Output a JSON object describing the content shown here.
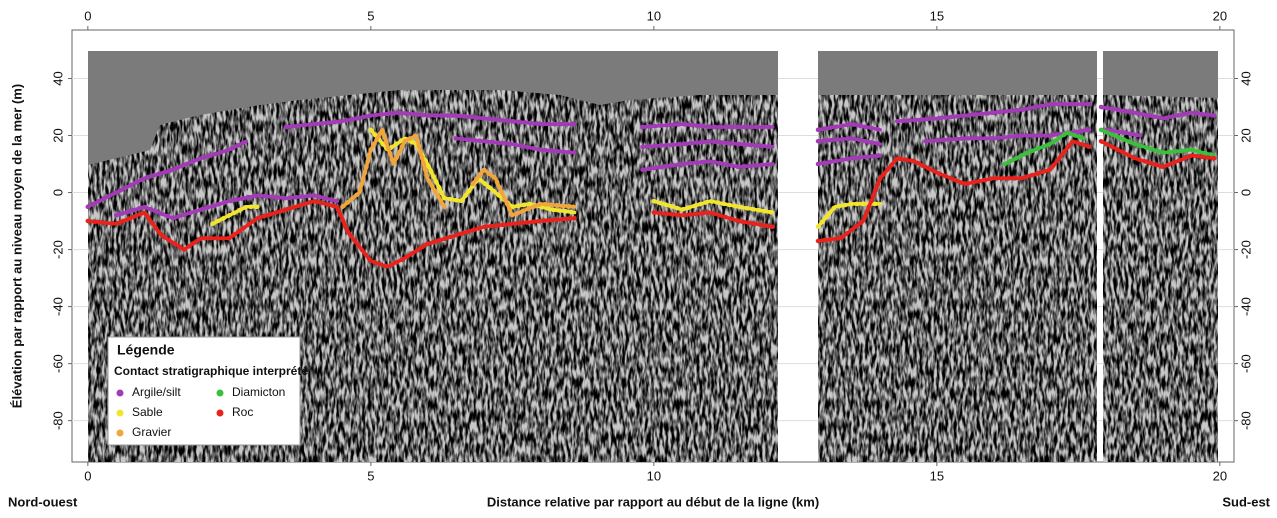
{
  "chart_data": {
    "type": "line",
    "xlabel": "Distance relative par rapport au début de la ligne (km)",
    "ylabel": "Élévation par rapport au niveau moyen de la mer (m)",
    "x_start_label": "Nord-ouest",
    "x_end_label": "Sud-est",
    "legend_title": "Légende",
    "legend_subtitle": "Contact stratigraphique interprété",
    "xlim": [
      -0.28,
      20.25
    ],
    "ylim": [
      -94.5,
      57
    ],
    "xticks": [
      0,
      5,
      10,
      15,
      20
    ],
    "yticks": [
      -80,
      -60,
      -40,
      -20,
      0,
      20,
      40
    ],
    "grid": true,
    "series": [
      {
        "name": "Argile/silt",
        "color": "#a23bb5",
        "x": [
          0,
          0.5,
          1,
          1.5,
          2,
          2.5,
          2.8,
          null,
          0.5,
          1,
          1.5,
          2,
          2.5,
          3,
          3.5,
          4,
          4.4,
          null,
          3.5,
          4,
          4.5,
          5,
          5.5,
          6,
          6.5,
          7,
          7.5,
          8,
          8.6,
          null,
          6.5,
          7,
          7.5,
          8,
          8.6,
          null,
          9.8,
          10.5,
          11,
          11.5,
          12.1,
          null,
          9.8,
          10.5,
          11,
          11.5,
          12.1,
          null,
          9.8,
          10.5,
          11,
          11.5,
          12.1,
          null,
          12.9,
          13.5,
          14,
          null,
          12.9,
          13.5,
          14,
          null,
          12.9,
          13.5,
          14,
          null,
          14.3,
          15,
          15.5,
          16,
          16.5,
          17,
          17.7,
          null,
          14.8,
          15.5,
          16,
          16.5,
          17,
          17.7,
          null,
          17.9,
          18.5,
          19,
          19.5,
          19.9,
          null,
          18,
          18.6
        ],
        "values": [
          -5,
          0,
          5,
          8,
          12,
          15,
          18,
          null,
          -8,
          -5,
          -9,
          -6,
          -3,
          -1,
          -2,
          -1,
          -3,
          null,
          23,
          24,
          25,
          27,
          28,
          27,
          27,
          26,
          25,
          24,
          24,
          null,
          19,
          18,
          17,
          15,
          14,
          null,
          23,
          24,
          23,
          23,
          23,
          null,
          16,
          17,
          18,
          17,
          16,
          null,
          8,
          10,
          11,
          9,
          10,
          null,
          22,
          24,
          22,
          null,
          18,
          19,
          17,
          null,
          10,
          12,
          13,
          null,
          25,
          26,
          27,
          28,
          29,
          31,
          31,
          null,
          18,
          19,
          19,
          20,
          20,
          22,
          null,
          30,
          28,
          26,
          28,
          27,
          null,
          22,
          20
        ]
      },
      {
        "name": "Sable",
        "color": "#f2e52e",
        "x": [
          2.2,
          2.5,
          2.8,
          3,
          null,
          5,
          5.3,
          5.6,
          5.8,
          6,
          6.3,
          6.6,
          6.9,
          7.2,
          7.5,
          7.8,
          8.2,
          8.6,
          null,
          10,
          10.5,
          11,
          11.5,
          12.1,
          null,
          12.9,
          13.2,
          13.5,
          14
        ],
        "values": [
          -11,
          -8,
          -5,
          -5,
          null,
          22,
          15,
          19,
          17,
          10,
          -2,
          -3,
          5,
          0,
          -5,
          -4,
          -6,
          -7,
          null,
          -3,
          -6,
          -3,
          -5,
          -7,
          null,
          -12,
          -5,
          -4,
          -4
        ]
      },
      {
        "name": "Gravier",
        "color": "#f0a63c",
        "x": [
          4.5,
          4.8,
          5,
          5.2,
          5.4,
          5.6,
          5.8,
          6,
          6.3,
          null,
          6.8,
          7,
          7.2,
          7.5,
          8,
          8.6
        ],
        "values": [
          -5,
          0,
          15,
          22,
          10,
          18,
          20,
          5,
          -5,
          null,
          3,
          8,
          5,
          -8,
          -4,
          -5
        ]
      },
      {
        "name": "Diamicton",
        "color": "#3cbf3c",
        "x": [
          16.2,
          16.6,
          17,
          17.3,
          17.6,
          null,
          17.9,
          18.5,
          19,
          19.5,
          19.9
        ],
        "values": [
          10,
          14,
          17,
          21,
          19,
          null,
          22,
          17,
          14,
          15,
          13
        ]
      },
      {
        "name": "Roc",
        "color": "#e8221c",
        "x": [
          0,
          0.5,
          1,
          1.3,
          1.7,
          2,
          2.5,
          3,
          3.5,
          4,
          4.4,
          4.6,
          5,
          5.3,
          5.6,
          6,
          6.5,
          7,
          7.5,
          8,
          8.6,
          null,
          10,
          10.5,
          11,
          11.5,
          12.1,
          null,
          12.9,
          13.3,
          13.7,
          14,
          14.3,
          14.6,
          15,
          15.5,
          16,
          16.5,
          17,
          17.4,
          17.7,
          null,
          17.9,
          18.5,
          19,
          19.5,
          19.9
        ],
        "values": [
          -10,
          -11,
          -7,
          -15,
          -20,
          -16,
          -16,
          -9,
          -6,
          -3,
          -5,
          -14,
          -24,
          -26,
          -23,
          -18,
          -15,
          -12,
          -11,
          -10,
          -9,
          null,
          -7,
          -8,
          -7,
          -10,
          -12,
          null,
          -17,
          -16,
          -10,
          5,
          12,
          11,
          7,
          3,
          5,
          5,
          8,
          18,
          16,
          null,
          18,
          12,
          9,
          13,
          12
        ]
      }
    ]
  }
}
